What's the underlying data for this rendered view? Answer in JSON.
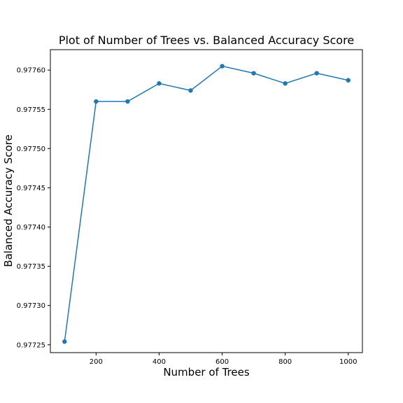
{
  "chart_data": {
    "type": "line",
    "title": "Plot of Number of Trees vs. Balanced Accuracy Score",
    "xlabel": "Number of Trees",
    "ylabel": "Balanced Accuracy Score",
    "x": [
      100,
      200,
      300,
      400,
      500,
      600,
      700,
      800,
      900,
      1000
    ],
    "series": [
      {
        "values": [
          0.977254,
          0.97756,
          0.97756,
          0.977583,
          0.977574,
          0.977605,
          0.977596,
          0.977583,
          0.977596,
          0.977587
        ]
      }
    ],
    "xlim": [
      55,
      1045
    ],
    "ylim": [
      0.97724,
      0.977626
    ],
    "xticks": [
      200,
      400,
      600,
      800,
      1000
    ],
    "xtick_labels": [
      "200",
      "400",
      "600",
      "800",
      "1000"
    ],
    "yticks": [
      0.97725,
      0.9773,
      0.97735,
      0.9774,
      0.97745,
      0.9775,
      0.97755,
      0.9776
    ],
    "ytick_labels": [
      "0.97725",
      "0.97730",
      "0.97735",
      "0.97740",
      "0.97745",
      "0.97750",
      "0.97755",
      "0.97760"
    ],
    "grid": false,
    "line_color": "#1f77b4",
    "marker": "circle"
  }
}
